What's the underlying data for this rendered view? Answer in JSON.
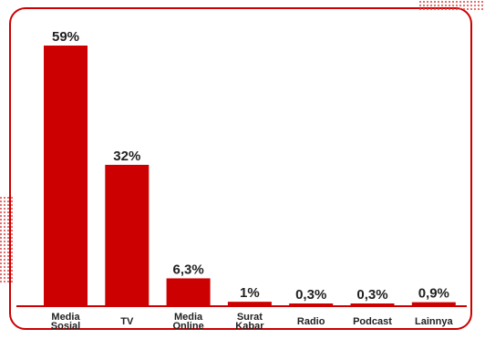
{
  "colors": {
    "bar": "#cc0000",
    "frame": "#cc0000",
    "text": "#222222",
    "dots": "#e04040"
  },
  "chart_data": {
    "type": "bar",
    "categories": [
      [
        "Media",
        "Sosial"
      ],
      [
        "TV"
      ],
      [
        "Media",
        "Online"
      ],
      [
        "Surat",
        "Kabar"
      ],
      [
        "Radio"
      ],
      [
        "Podcast"
      ],
      [
        "Lainnya"
      ]
    ],
    "values": [
      59,
      32,
      6.3,
      1,
      0.3,
      0.3,
      0.9
    ],
    "value_labels": [
      "59%",
      "32%",
      "6,3%",
      "1%",
      "0,3%",
      "0,3%",
      "0,9%"
    ],
    "ylim": [
      0,
      59
    ],
    "grid": false,
    "legend": "none"
  }
}
